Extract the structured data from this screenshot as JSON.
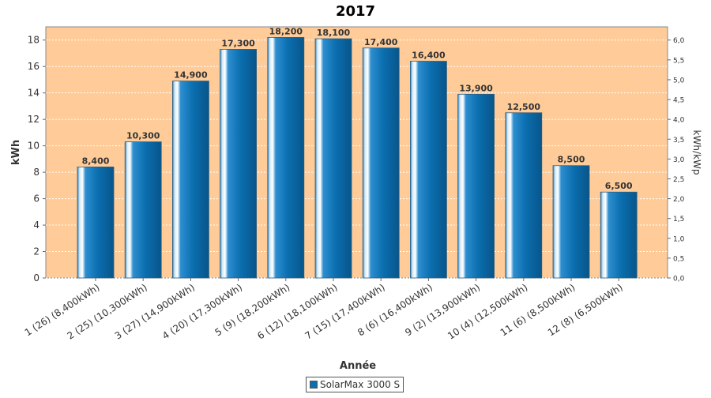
{
  "chart_data": {
    "type": "bar",
    "title": "2017",
    "xlabel": "Année",
    "ylabel": "kWh",
    "y2label": "kWh/kWp",
    "categories": [
      "1 (26)  (8,400kWh)",
      "2 (25)  (10,300kWh)",
      "3 (27)  (14,900kWh)",
      "4 (20)  (17,300kWh)",
      "5 (9)  (18,200kWh)",
      "6 (12)  (18,100kWh)",
      "7 (15)  (17,400kWh)",
      "8 (6)  (16,400kWh)",
      "9 (2)  (13,900kWh)",
      "10 (4)  (12,500kWh)",
      "11 (6)  (8,500kWh)",
      "12 (8)  (6,500kWh)"
    ],
    "series": [
      {
        "name": "SolarMax 3000 S",
        "values": [
          8.4,
          10.3,
          14.9,
          17.3,
          18.2,
          18.1,
          17.4,
          16.4,
          13.9,
          12.5,
          8.5,
          6.5
        ],
        "labels": [
          "8,400",
          "10,300",
          "14,900",
          "17,300",
          "18,200",
          "18,100",
          "17,400",
          "16,400",
          "13,900",
          "12,500",
          "8,500",
          "6,500"
        ]
      }
    ],
    "ylim": [
      0,
      19
    ],
    "yticks": [
      0,
      2,
      4,
      6,
      8,
      10,
      12,
      14,
      16,
      18
    ],
    "y2lim": [
      0,
      6.333
    ],
    "y2ticks": [
      "0,0",
      "0,5",
      "1,0",
      "1,5",
      "2,0",
      "2,5",
      "3,0",
      "3,5",
      "4,0",
      "4,5",
      "5,0",
      "5,5",
      "6,0"
    ],
    "grid": true,
    "legend_position": "bottom-center",
    "colors": {
      "plot_background": "#ffcc99",
      "bar": "#0b6fb0",
      "bar_highlight": "#ffffff",
      "gridline": "#ffffff"
    }
  }
}
